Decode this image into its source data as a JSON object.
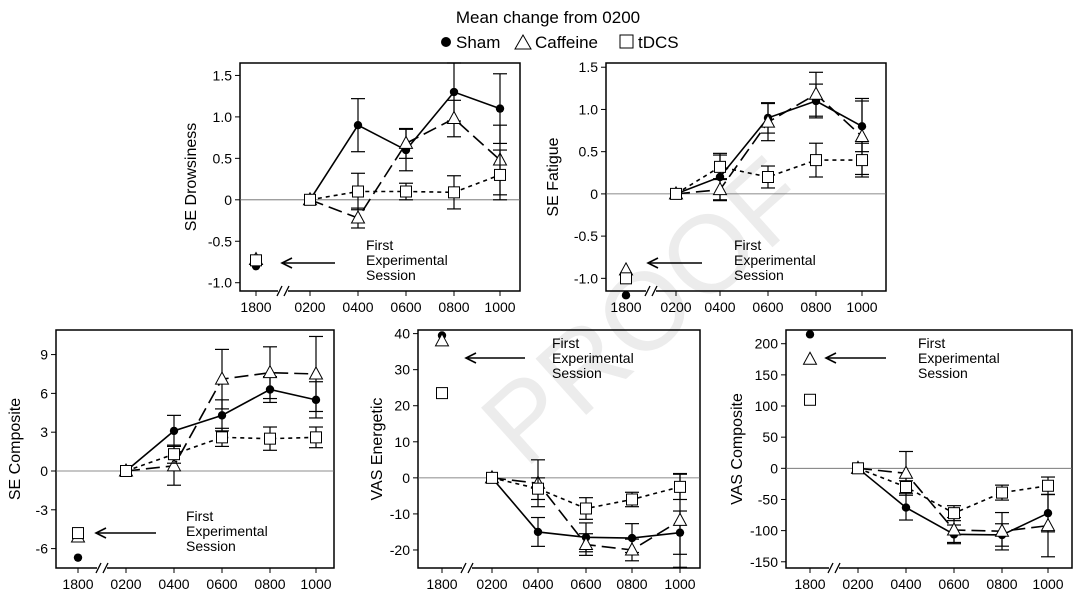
{
  "figure": {
    "title": "Mean change from 0200",
    "legend": [
      {
        "label": "Sham",
        "marker": "filled-circle"
      },
      {
        "label": "Caffeine",
        "marker": "open-triangle"
      },
      {
        "label": "tDCS",
        "marker": "open-square"
      }
    ],
    "annotation_lines": [
      "First",
      "Experimental",
      "Session"
    ],
    "watermark": "PROOF"
  },
  "chart_data": [
    {
      "type": "line",
      "ylabel": "SE Drowsiness",
      "categories": [
        "1800",
        "0200",
        "0400",
        "0600",
        "0800",
        "1000"
      ],
      "ylim": [
        -1.1,
        1.65
      ],
      "yticks": [
        -1.0,
        -0.5,
        0,
        0.5,
        1.0,
        1.5
      ],
      "ytick_labels": [
        "-1.0",
        "-0.5",
        "0",
        "0.5",
        "1.0",
        "1.5"
      ],
      "series": [
        {
          "name": "Sham",
          "values": [
            -0.8,
            0,
            0.9,
            0.6,
            1.3,
            1.1
          ],
          "err": [
            null,
            0,
            0.32,
            0.25,
            0.35,
            0.42
          ]
        },
        {
          "name": "Caffeine",
          "values": [
            -0.72,
            0,
            -0.22,
            0.68,
            0.98,
            0.48
          ],
          "err": [
            null,
            0,
            0.12,
            0.18,
            0.22,
            0.42
          ]
        },
        {
          "name": "tDCS",
          "values": [
            -0.73,
            0,
            0.1,
            0.1,
            0.09,
            0.3
          ],
          "err": [
            null,
            0,
            0.22,
            0.1,
            0.2,
            0.3
          ]
        }
      ]
    },
    {
      "type": "line",
      "ylabel": "SE Fatigue",
      "categories": [
        "1800",
        "0200",
        "0400",
        "0600",
        "0800",
        "1000"
      ],
      "ylim": [
        -1.15,
        1.55
      ],
      "yticks": [
        -1.0,
        -0.5,
        0,
        0.5,
        1.0,
        1.5
      ],
      "ytick_labels": [
        "-1.0",
        "-0.5",
        "0",
        "0.5",
        "1.0",
        "1.5"
      ],
      "series": [
        {
          "name": "Sham",
          "values": [
            -1.2,
            0,
            0.2,
            0.9,
            1.1,
            0.8
          ],
          "err": [
            null,
            0,
            0.28,
            0.18,
            0.2,
            0.3
          ]
        },
        {
          "name": "Caffeine",
          "values": [
            -0.9,
            0,
            0.05,
            0.85,
            1.18,
            0.68
          ],
          "err": [
            null,
            0,
            0.12,
            0.22,
            0.26,
            0.45
          ]
        },
        {
          "name": "tDCS",
          "values": [
            -1.0,
            0,
            0.32,
            0.2,
            0.4,
            0.4
          ],
          "err": [
            null,
            0,
            0.14,
            0.13,
            0.2,
            0.2
          ]
        }
      ]
    },
    {
      "type": "line",
      "ylabel": "SE Composite",
      "categories": [
        "1800",
        "0200",
        "0400",
        "0600",
        "0800",
        "1000"
      ],
      "ylim": [
        -7.5,
        10.9
      ],
      "yticks": [
        -6,
        -3,
        0,
        3,
        6,
        9
      ],
      "ytick_labels": [
        "-6",
        "-3",
        "0",
        "3",
        "6",
        "9"
      ],
      "series": [
        {
          "name": "Sham",
          "values": [
            -6.7,
            0,
            3.1,
            4.3,
            6.3,
            5.5
          ],
          "err": [
            null,
            0,
            1.2,
            1.2,
            1.0,
            1.4
          ]
        },
        {
          "name": "Caffeine",
          "values": [
            -5.1,
            0,
            0.4,
            7.1,
            7.6,
            7.5
          ],
          "err": [
            null,
            0,
            1.5,
            2.3,
            2.0,
            2.9
          ]
        },
        {
          "name": "tDCS",
          "values": [
            -4.8,
            0,
            1.3,
            2.6,
            2.5,
            2.6
          ],
          "err": [
            null,
            0,
            0.7,
            0.7,
            0.9,
            0.8
          ]
        }
      ]
    },
    {
      "type": "line",
      "ylabel": "VAS Energetic",
      "categories": [
        "1800",
        "0200",
        "0400",
        "0600",
        "0800",
        "1000"
      ],
      "ylim": [
        -25,
        41
      ],
      "yticks": [
        -20,
        -10,
        0,
        10,
        20,
        30,
        40
      ],
      "ytick_labels": [
        "-20",
        "-10",
        "0",
        "10",
        "20",
        "30",
        "40"
      ],
      "series": [
        {
          "name": "Sham",
          "values": [
            39.5,
            0,
            -15,
            -16.5,
            -16.7,
            -15.2
          ],
          "err": [
            null,
            0,
            4,
            4,
            4,
            6
          ]
        },
        {
          "name": "Caffeine",
          "values": [
            38,
            0,
            -1.5,
            -18.5,
            -20,
            -11.8
          ],
          "err": [
            null,
            0,
            6.5,
            3,
            3,
            13
          ]
        },
        {
          "name": "tDCS",
          "values": [
            23.5,
            0,
            -3,
            -8.5,
            -6,
            -2.5
          ],
          "err": [
            null,
            0,
            3,
            3,
            2,
            3.5
          ]
        }
      ]
    },
    {
      "type": "line",
      "ylabel": "VAS Composite",
      "categories": [
        "1800",
        "0200",
        "0400",
        "0600",
        "0800",
        "1000"
      ],
      "ylim": [
        -160,
        222
      ],
      "yticks": [
        -150,
        -100,
        -50,
        0,
        50,
        100,
        150,
        200
      ],
      "ytick_labels": [
        "-150",
        "-100",
        "-50",
        "0",
        "50",
        "100",
        "150",
        "200"
      ],
      "series": [
        {
          "name": "Sham",
          "values": [
            215,
            0,
            -63,
            -106,
            -107,
            -72
          ],
          "err": [
            null,
            0,
            20,
            15,
            18,
            30
          ]
        },
        {
          "name": "Caffeine",
          "values": [
            175,
            0,
            -8,
            -99,
            -101,
            -92
          ],
          "err": [
            null,
            0,
            35,
            20,
            30,
            50
          ]
        },
        {
          "name": "tDCS",
          "values": [
            110,
            0,
            -30,
            -72,
            -39,
            -28
          ],
          "err": [
            null,
            0,
            10,
            12,
            12,
            14
          ]
        }
      ]
    }
  ]
}
